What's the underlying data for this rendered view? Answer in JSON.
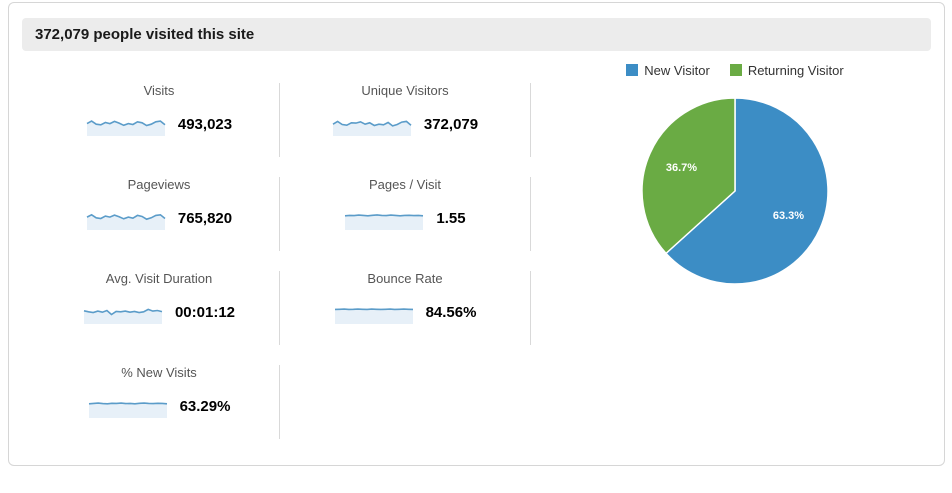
{
  "header": {
    "title": "372,079 people visited this site"
  },
  "colors": {
    "new_visitor_blue": "#3c8dc5",
    "returning_visitor_green": "#6aab44",
    "spark_line": "#5b9cc9",
    "spark_fill": "#e7f0f8",
    "header_bg": "#ececec",
    "divider": "#d9d9d9"
  },
  "chart_data": [
    {
      "type": "pie",
      "legend_position": "top",
      "start_angle_deg": 0,
      "direction": "clockwise",
      "slices": [
        {
          "label": "New Visitor",
          "value": 63.3,
          "display": "63.3%",
          "color": "#3c8dc5"
        },
        {
          "label": "Returning Visitor",
          "value": 36.7,
          "display": "36.7%",
          "color": "#6aab44"
        }
      ]
    },
    {
      "type": "sparklines",
      "series": [
        {
          "name": "Visits",
          "value_label": "493,023",
          "points": [
            0.55,
            0.7,
            0.52,
            0.48,
            0.62,
            0.55,
            0.68,
            0.58,
            0.45,
            0.55,
            0.5,
            0.66,
            0.6,
            0.44,
            0.52,
            0.66,
            0.7,
            0.48
          ]
        },
        {
          "name": "Unique Visitors",
          "value_label": "372,079",
          "points": [
            0.52,
            0.68,
            0.5,
            0.46,
            0.6,
            0.58,
            0.66,
            0.52,
            0.6,
            0.44,
            0.52,
            0.48,
            0.62,
            0.42,
            0.5,
            0.64,
            0.68,
            0.46
          ]
        },
        {
          "name": "Pageviews",
          "value_label": "765,820",
          "points": [
            0.58,
            0.72,
            0.54,
            0.5,
            0.64,
            0.58,
            0.7,
            0.6,
            0.48,
            0.58,
            0.52,
            0.68,
            0.62,
            0.46,
            0.54,
            0.68,
            0.72,
            0.5
          ]
        },
        {
          "name": "Pages / Visit",
          "value_label": "1.55",
          "points": [
            0.66,
            0.68,
            0.67,
            0.7,
            0.68,
            0.66,
            0.69,
            0.71,
            0.68,
            0.67,
            0.7,
            0.68,
            0.66,
            0.68,
            0.69,
            0.67,
            0.68,
            0.66
          ]
        },
        {
          "name": "Avg. Visit Duration",
          "value_label": "00:01:12",
          "points": [
            0.6,
            0.54,
            0.5,
            0.58,
            0.52,
            0.62,
            0.38,
            0.56,
            0.54,
            0.58,
            0.52,
            0.56,
            0.5,
            0.54,
            0.68,
            0.58,
            0.62,
            0.55
          ]
        },
        {
          "name": "Bounce Rate",
          "value_label": "84.56%",
          "points": [
            0.68,
            0.69,
            0.7,
            0.68,
            0.69,
            0.7,
            0.69,
            0.68,
            0.7,
            0.69,
            0.68,
            0.69,
            0.7,
            0.68,
            0.69,
            0.7,
            0.69,
            0.68
          ]
        },
        {
          "name": "% New Visits",
          "value_label": "63.29%",
          "points": [
            0.66,
            0.68,
            0.7,
            0.67,
            0.66,
            0.69,
            0.68,
            0.7,
            0.67,
            0.68,
            0.66,
            0.69,
            0.7,
            0.68,
            0.67,
            0.69,
            0.68,
            0.66
          ]
        }
      ]
    }
  ]
}
